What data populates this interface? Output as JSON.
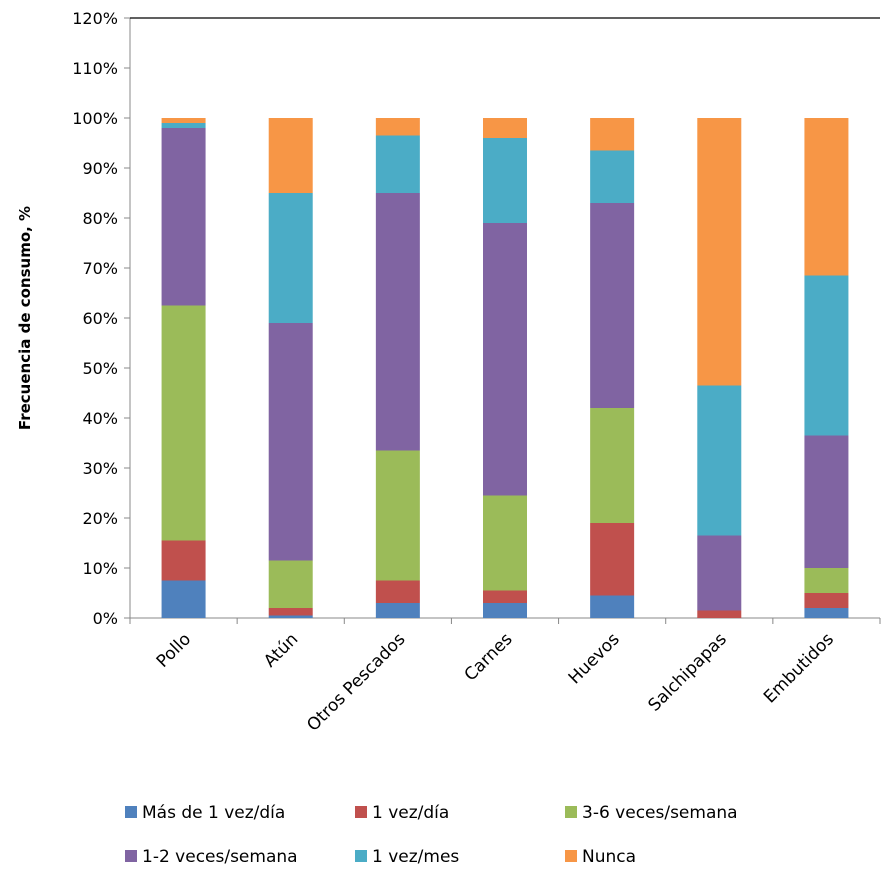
{
  "chart_data": {
    "type": "bar",
    "stacked": true,
    "ylabel": "Frecuencia  de consumo, %",
    "xlabel": "",
    "ylim": [
      0,
      120
    ],
    "yticks": [
      "0%",
      "10%",
      "20%",
      "30%",
      "40%",
      "50%",
      "60%",
      "70%",
      "80%",
      "90%",
      "100%",
      "110%",
      "120%"
    ],
    "categories": [
      "Pollo",
      "Atún",
      "Otros Pescados",
      "Carnes",
      "Huevos",
      "Salchipapas",
      "Embutidos"
    ],
    "series": [
      {
        "name": "Más de 1 vez/día",
        "color": "#4F81BD",
        "values": [
          7.5,
          0.5,
          3,
          3,
          4.5,
          0,
          2
        ]
      },
      {
        "name": "1 vez/día",
        "color": "#C0504D",
        "values": [
          8,
          1.5,
          4.5,
          2.5,
          14.5,
          1.5,
          3
        ]
      },
      {
        "name": "3-6 veces/semana",
        "color": "#9BBB59",
        "values": [
          47,
          9.5,
          26,
          19,
          23,
          0,
          5
        ]
      },
      {
        "name": "1-2 veces/semana",
        "color": "#8064A2",
        "values": [
          35.5,
          47.5,
          51.5,
          54.5,
          41,
          15,
          26.5
        ]
      },
      {
        "name": "1 vez/mes",
        "color": "#4BACC6",
        "values": [
          1,
          26,
          11.5,
          17,
          10.5,
          30,
          32
        ]
      },
      {
        "name": "Nunca",
        "color": "#F79646",
        "values": [
          1,
          15,
          3.5,
          4,
          6.5,
          53.5,
          31.5
        ]
      }
    ],
    "grid": false,
    "legend_position": "bottom"
  }
}
